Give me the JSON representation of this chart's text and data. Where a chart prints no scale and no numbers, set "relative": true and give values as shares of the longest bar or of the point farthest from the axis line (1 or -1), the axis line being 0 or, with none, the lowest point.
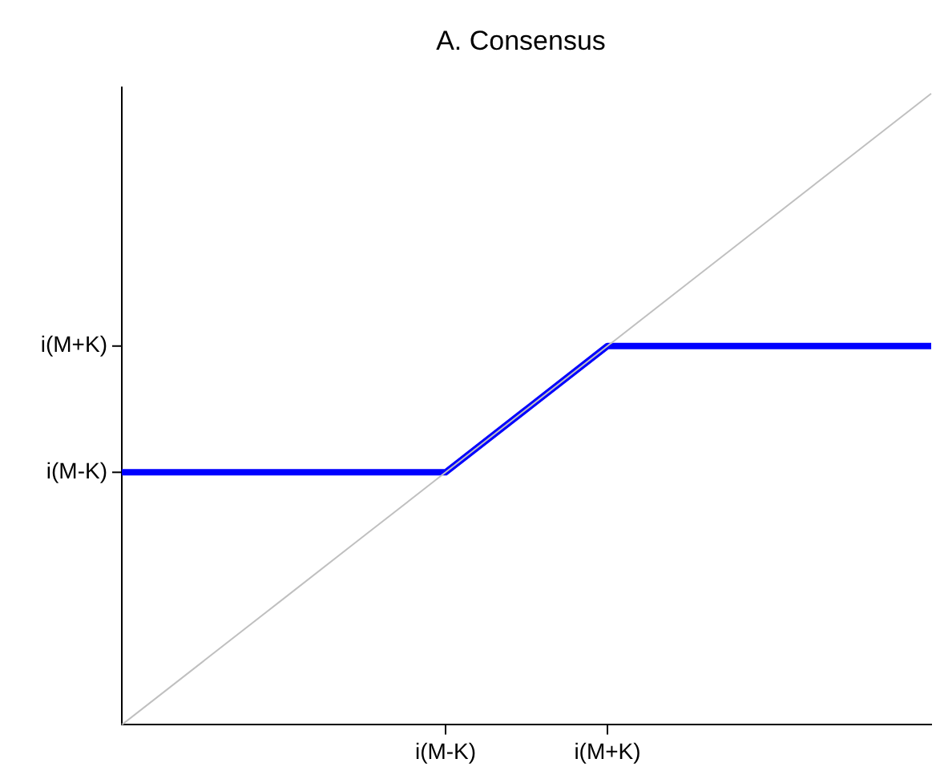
{
  "chart_data": {
    "type": "line",
    "title": "A. Consensus",
    "marker": "none",
    "legend": false,
    "relative": true,
    "categories": [
      null,
      null,
      null,
      null,
      "i(M-K)",
      null,
      "i(M+K)",
      null,
      null,
      null,
      null
    ],
    "annotations": [
      "i(M-K)",
      "i(M+K)"
    ],
    "series": [
      {
        "color": "#c0c0c0",
        "values": [
          0,
          0.1,
          0.2,
          0.3,
          0.4,
          0.5,
          0.6,
          0.7,
          0.8,
          0.9,
          1
        ]
      },
      {
        "color": "#0000ff",
        "values": [
          0.4,
          0.4,
          0.4,
          0.4,
          0.4,
          0.5,
          0.6,
          0.6,
          0.6,
          0.6,
          0.6
        ]
      }
    ]
  }
}
